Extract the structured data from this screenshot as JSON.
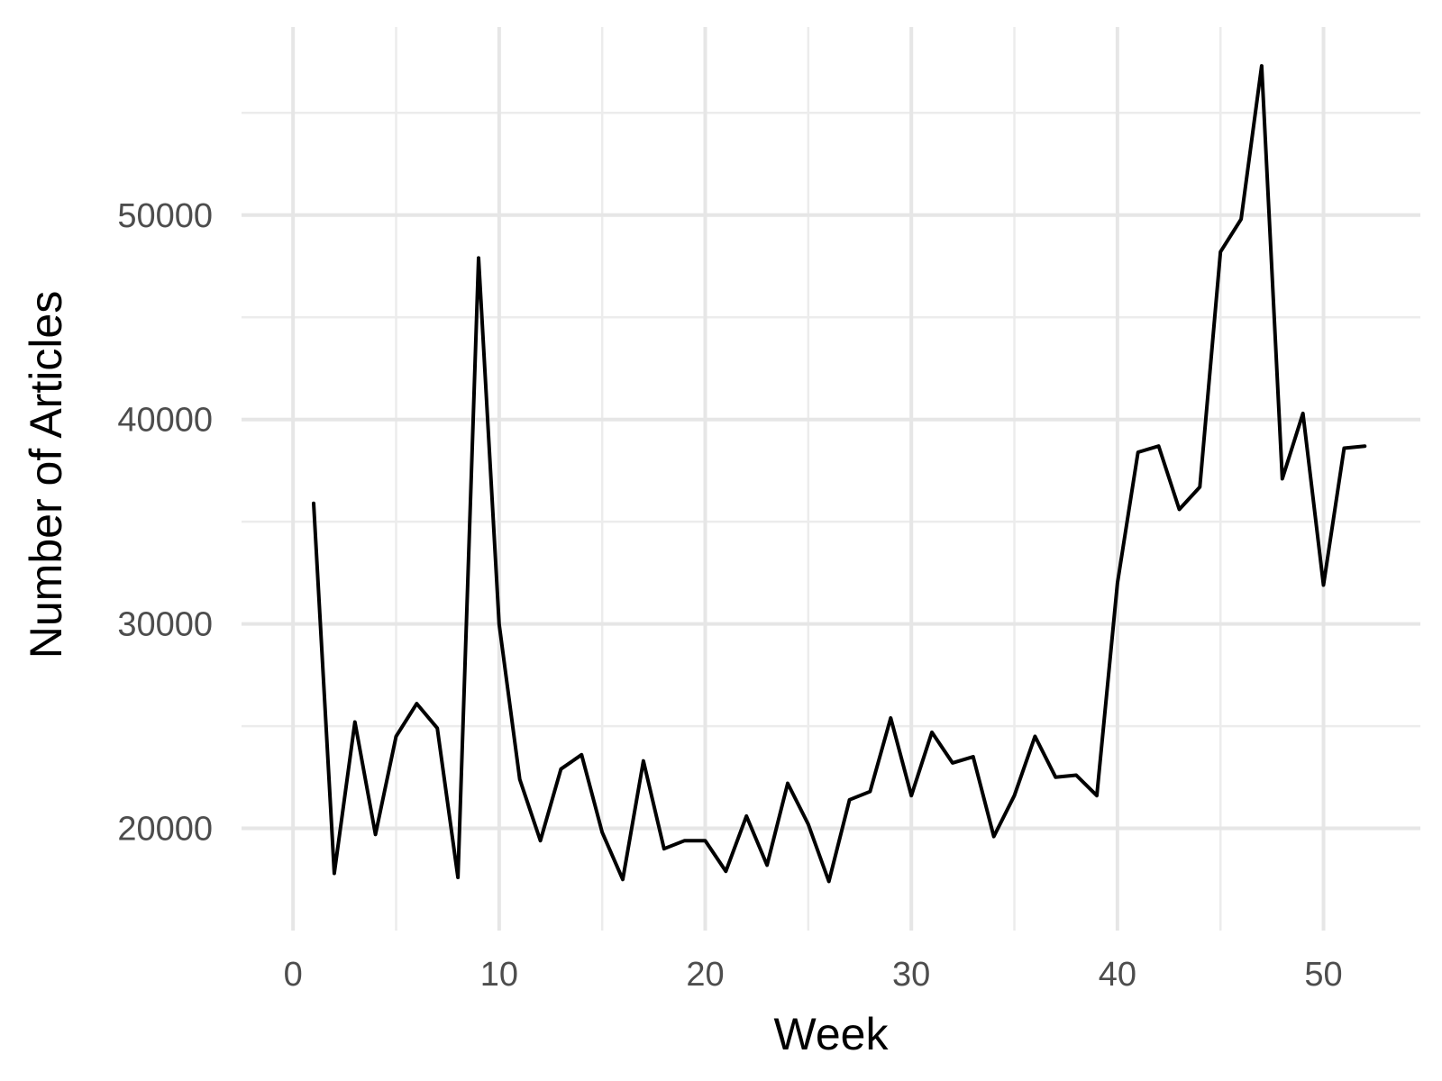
{
  "chart_data": {
    "type": "line",
    "title": "",
    "xlabel": "Week",
    "ylabel": "Number of Articles",
    "xlim": [
      -2.5,
      54.7
    ],
    "ylim": [
      15000,
      59200
    ],
    "x_ticks": [
      0,
      10,
      20,
      30,
      40,
      50
    ],
    "x_tick_labels": [
      "0",
      "10",
      "20",
      "30",
      "40",
      "50"
    ],
    "x_minor_ticks": [
      5,
      15,
      25,
      35,
      45
    ],
    "y_ticks": [
      20000,
      30000,
      40000,
      50000
    ],
    "y_tick_labels": [
      "20000",
      "30000",
      "40000",
      "50000"
    ],
    "y_minor_ticks": [
      25000,
      35000,
      45000,
      55000
    ],
    "grid": true,
    "legend": "none",
    "series": [
      {
        "x": [
          1,
          2,
          3,
          4,
          5,
          6,
          7,
          8,
          9,
          10,
          11,
          12,
          13,
          14,
          15,
          16,
          17,
          18,
          19,
          20,
          21,
          22,
          23,
          24,
          25,
          26,
          27,
          28,
          29,
          30,
          31,
          32,
          33,
          34,
          35,
          36,
          37,
          38,
          39,
          40,
          41,
          42,
          43,
          44,
          45,
          46,
          47,
          48,
          49,
          50,
          51,
          52
        ],
        "values": [
          35900,
          17800,
          25200,
          19700,
          24500,
          26100,
          24900,
          17600,
          47900,
          30000,
          22400,
          19400,
          22900,
          23600,
          19800,
          17500,
          23300,
          19000,
          19400,
          19400,
          17900,
          20600,
          18200,
          22200,
          20200,
          17400,
          21400,
          21800,
          25400,
          21600,
          24700,
          23200,
          23500,
          19600,
          21600,
          24500,
          22500,
          22600,
          21600,
          32000,
          38400,
          38700,
          35600,
          36700,
          48200,
          49800,
          57300,
          37100,
          40300,
          31900,
          38600,
          38700
        ]
      }
    ]
  }
}
